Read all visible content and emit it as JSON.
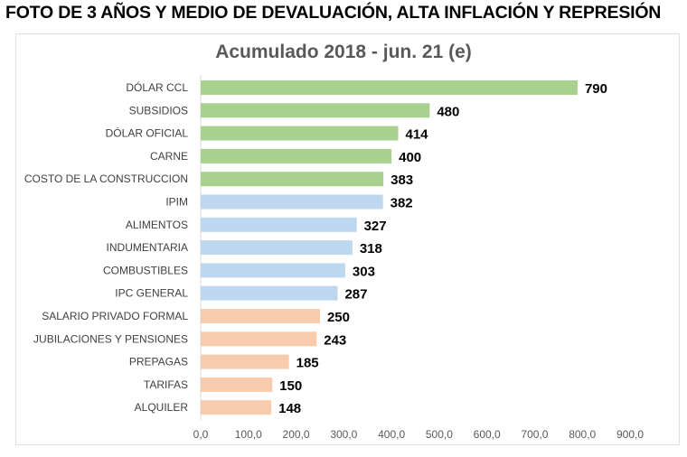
{
  "headline": "FOTO DE 3 AÑOS Y MEDIO DE DEVALUACIÓN, ALTA INFLACIÓN Y REPRESIÓN",
  "chart_data": {
    "type": "bar",
    "orientation": "horizontal",
    "title": "Acumulado 2018 - jun. 21 (e)",
    "categories": [
      "DÓLAR CCL",
      "SUBSIDIOS",
      "DÓLAR OFICIAL",
      "CARNE",
      "COSTO DE LA CONSTRUCCION",
      "IPIM",
      "ALIMENTOS",
      "INDUMENTARIA",
      "COMBUSTIBLES",
      "IPC GENERAL",
      "SALARIO PRIVADO FORMAL",
      "JUBILACIONES Y PENSIONES",
      "PREPAGAS",
      "TARIFAS",
      "ALQUILER"
    ],
    "values": [
      790,
      480,
      414,
      400,
      383,
      382,
      327,
      318,
      303,
      287,
      250,
      243,
      185,
      150,
      148
    ],
    "bar_colors": [
      "#a9d18e",
      "#a9d18e",
      "#a9d18e",
      "#a9d18e",
      "#a9d18e",
      "#bdd7ee",
      "#bdd7ee",
      "#bdd7ee",
      "#bdd7ee",
      "#bdd7ee",
      "#f8cbad",
      "#f8cbad",
      "#f8cbad",
      "#f8cbad",
      "#f8cbad"
    ],
    "xlim": [
      0,
      900
    ],
    "x_ticks": [
      "0,0",
      "100,0",
      "200,0",
      "300,0",
      "400,0",
      "500,0",
      "600,0",
      "700,0",
      "800,0",
      "900,0"
    ],
    "grid": false,
    "legend": "none",
    "xlabel": "",
    "ylabel": ""
  }
}
